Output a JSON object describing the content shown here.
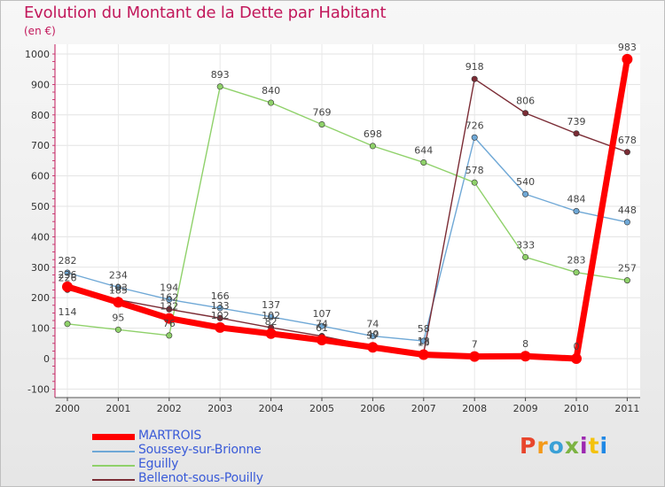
{
  "title": "Evolution du Montant de la Dette par Habitant",
  "unit": "(en €)",
  "logo": {
    "text": "Proxiti",
    "colors": [
      "#e8452c",
      "#f49a1a",
      "#3aa0d6",
      "#7cb342",
      "#9c27b0",
      "#f4c20d",
      "#1e88e5"
    ]
  },
  "chart_data": {
    "type": "line",
    "x": [
      "2000",
      "2001",
      "2002",
      "2003",
      "2004",
      "2005",
      "2006",
      "2007",
      "2008",
      "2009",
      "2010",
      "2011"
    ],
    "yticks": [
      -100,
      0,
      100,
      200,
      300,
      400,
      500,
      600,
      700,
      800,
      900,
      1000
    ],
    "ylim": [
      -100,
      1000
    ],
    "grid": true,
    "legend": "bottom-left",
    "series": [
      {
        "name": "MARTROIS",
        "color": "#ff0000",
        "width": 7,
        "values": [
          236,
          185,
          132,
          102,
          82,
          61,
          37,
          13,
          7,
          8,
          0,
          983
        ],
        "labels": [
          "236",
          "185",
          "132",
          "102",
          "82",
          "61",
          "37",
          "13",
          "7",
          "8",
          "0",
          "983"
        ]
      },
      {
        "name": "Soussey-sur-Brionne",
        "color": "#6fa8d6",
        "width": 1.4,
        "values": [
          282,
          234,
          194,
          166,
          137,
          107,
          74,
          58,
          726,
          540,
          484,
          448
        ],
        "labels": [
          "282",
          "234",
          "194",
          "166",
          "137",
          "107",
          "74",
          "58",
          "726",
          "540",
          "484",
          "448"
        ]
      },
      {
        "name": "Eguilly",
        "color": "#8fd16a",
        "width": 1.4,
        "values": [
          114,
          95,
          76,
          893,
          840,
          769,
          698,
          644,
          578,
          333,
          283,
          257
        ],
        "labels": [
          "114",
          "95",
          "76",
          "893",
          "840",
          "769",
          "698",
          "644",
          "578",
          "333",
          "283",
          "257"
        ]
      },
      {
        "name": "Bellenot-sous-Pouilly",
        "color": "#7b2c35",
        "width": 1.4,
        "values": [
          226,
          193,
          162,
          133,
          102,
          74,
          40,
          18,
          918,
          806,
          739,
          678
        ],
        "labels": [
          "226",
          "193",
          "162",
          "133",
          "102",
          "74",
          "40",
          "18",
          "918",
          "806",
          "739",
          "678"
        ]
      }
    ]
  }
}
